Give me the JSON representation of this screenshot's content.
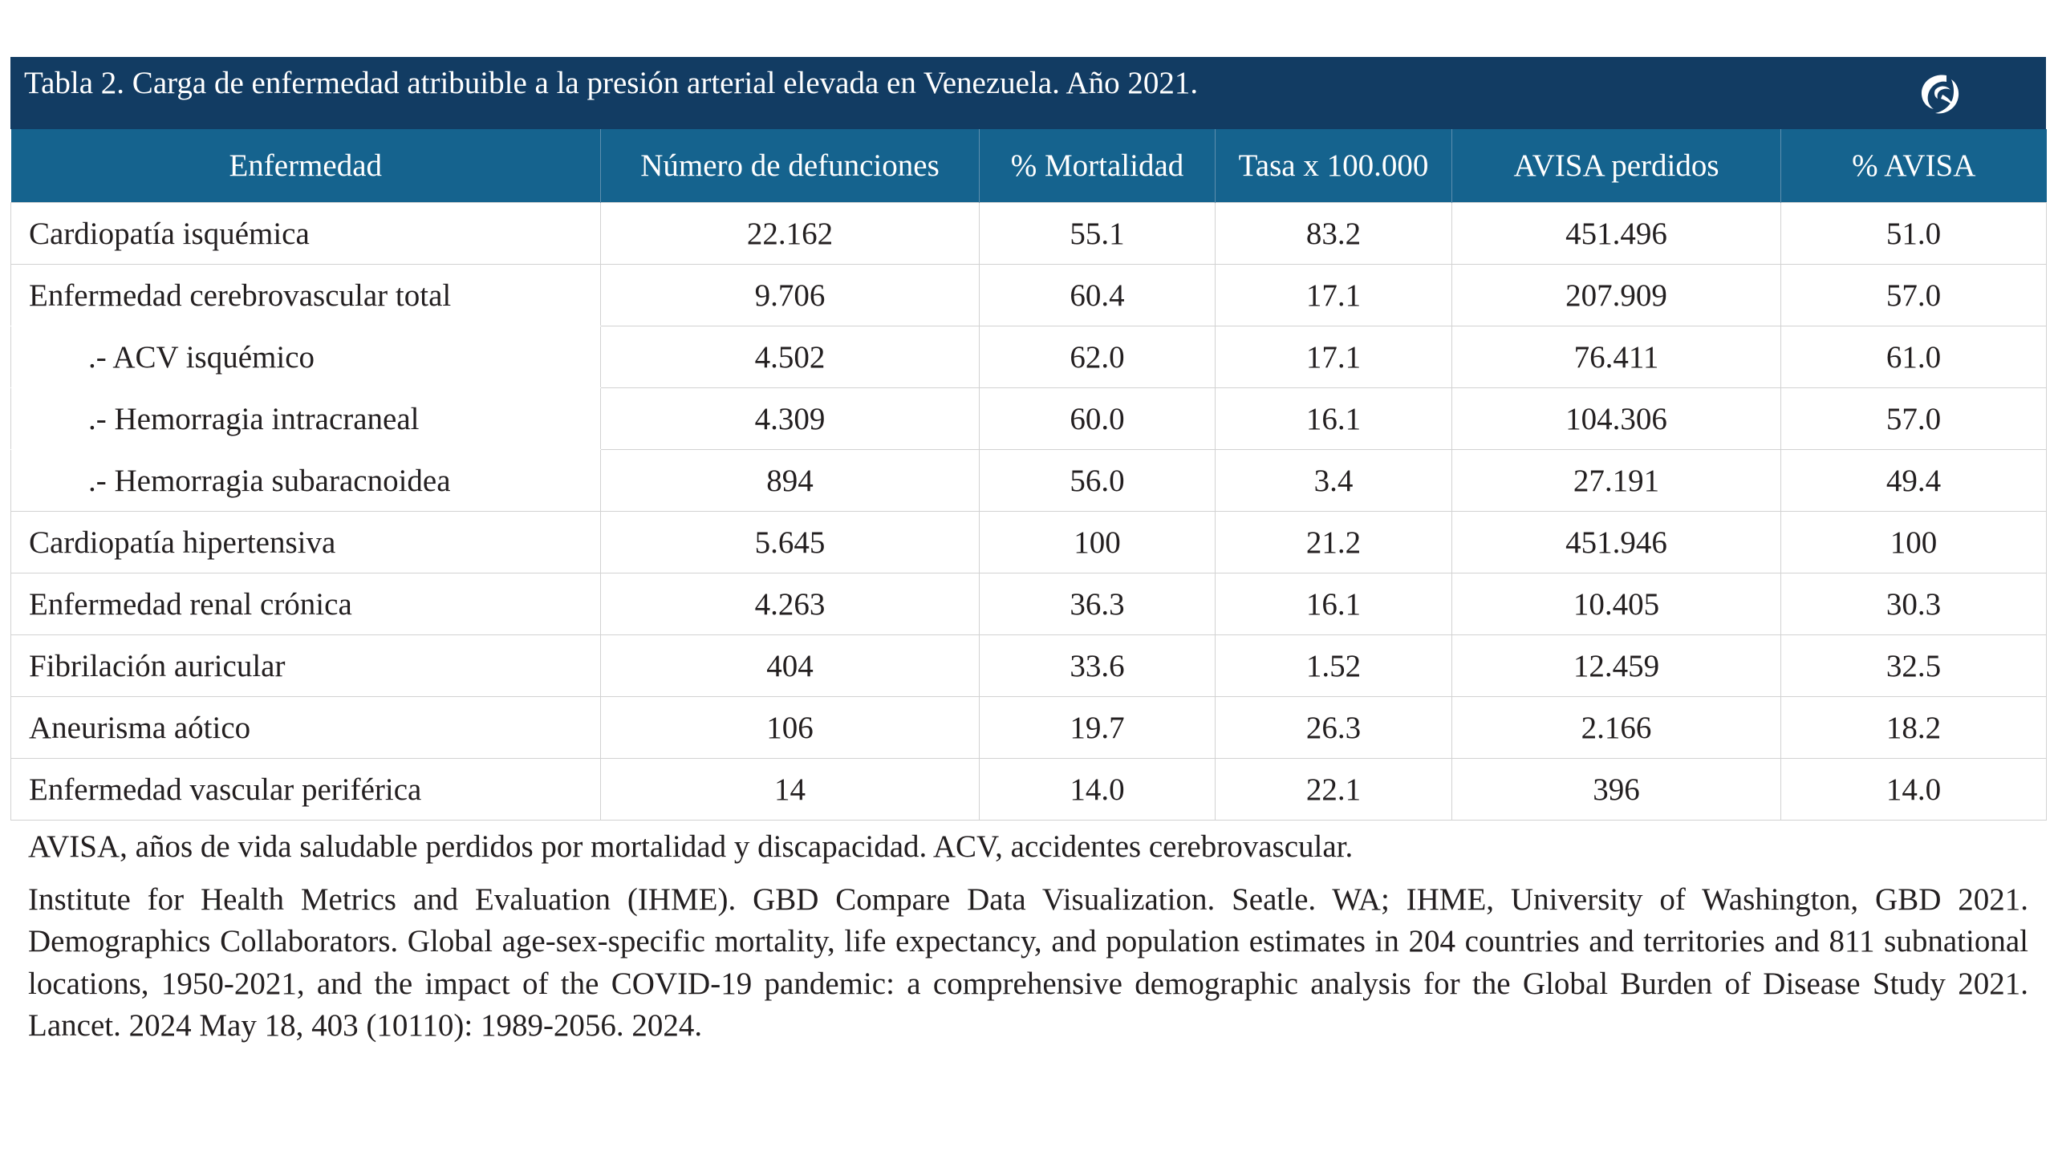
{
  "table": {
    "title": "Tabla 2. Carga de enfermedad  atribuible a la presión arterial elevada en Venezuela. Año 2021.",
    "logo_icon": "publisher-logo-icon",
    "header_color": "#123c63",
    "column_header_color": "#15638e",
    "columns": [
      "Enfermedad",
      "Número de defunciones",
      "% Mortalidad",
      "Tasa x 100.000",
      "AVISA perdidos",
      "% AVISA"
    ],
    "rows": [
      {
        "name": "Cardiopatía isquémica",
        "deaths": "22.162",
        "mortality_pct": "55.1",
        "rate": "83.2",
        "avisa": "451.496",
        "avisa_pct": "51.0"
      },
      {
        "name": "Enfermedad cerebrovascular total",
        "deaths": "9.706",
        "mortality_pct": "60.4",
        "rate": "17.1",
        "avisa": "207.909",
        "avisa_pct": "57.0"
      },
      {
        "name": ".- ACV isquémico",
        "deaths": "4.502",
        "mortality_pct": "62.0",
        "rate": "17.1",
        "avisa": "76.411",
        "avisa_pct": "61.0"
      },
      {
        "name": ".- Hemorragia intracraneal",
        "deaths": "4.309",
        "mortality_pct": "60.0",
        "rate": "16.1",
        "avisa": "104.306",
        "avisa_pct": "57.0"
      },
      {
        "name": ".- Hemorragia subaracnoidea",
        "deaths": "894",
        "mortality_pct": "56.0",
        "rate": "3.4",
        "avisa": "27.191",
        "avisa_pct": "49.4"
      },
      {
        "name": "Cardiopatía hipertensiva",
        "deaths": "5.645",
        "mortality_pct": "100",
        "rate": "21.2",
        "avisa": "451.946",
        "avisa_pct": "100"
      },
      {
        "name": "Enfermedad renal crónica",
        "deaths": "4.263",
        "mortality_pct": "36.3",
        "rate": "16.1",
        "avisa": "10.405",
        "avisa_pct": "30.3"
      },
      {
        "name": "Fibrilación auricular",
        "deaths": "404",
        "mortality_pct": "33.6",
        "rate": "1.52",
        "avisa": "12.459",
        "avisa_pct": "32.5"
      },
      {
        "name": "Aneurisma aótico",
        "deaths": "106",
        "mortality_pct": "19.7",
        "rate": "26.3",
        "avisa": "2.166",
        "avisa_pct": "18.2"
      },
      {
        "name": "Enfermedad vascular periférica",
        "deaths": "14",
        "mortality_pct": "14.0",
        "rate": "22.1",
        "avisa": "396",
        "avisa_pct": "14.0"
      }
    ]
  },
  "notes": {
    "abbreviations": "AVISA, años de vida saludable perdidos por mortalidad y discapacidad. ACV, accidentes cerebrovascular.",
    "source": "Institute for Health Metrics and Evaluation (IHME). GBD Compare Data Visualization. Seatle. WA; IHME, University of Washington, GBD 2021. Demographics Collaborators. Global age-sex-specific mortality, life expectancy, and population estimates in 204 countries and territories  and 811 subnational locations, 1950-2021, and the impact of the COVID-19 pandemic: a comprehensive demographic analysis for the Global Burden of Disease Study 2021. Lancet. 2024 May 18, 403 (10110): 1989-2056. 2024."
  }
}
